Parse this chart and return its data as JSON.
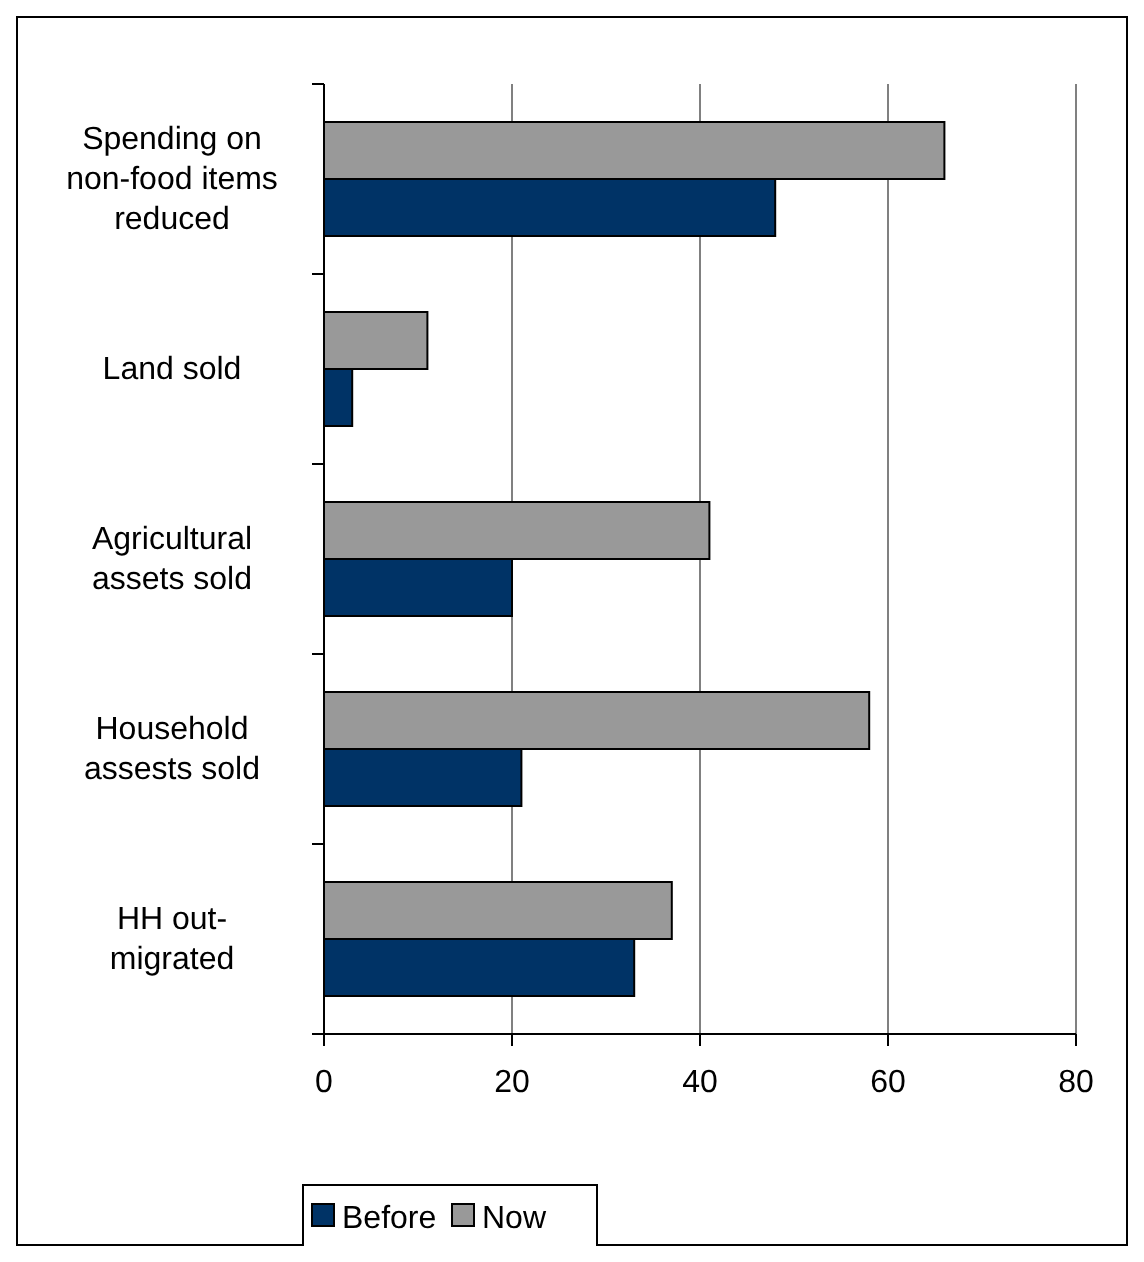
{
  "chart_data": {
    "type": "bar",
    "orientation": "horizontal",
    "categories": [
      "Spending on non-food items reduced",
      "Land sold",
      "Agricultural assets sold",
      "Household assests sold",
      "HH out-migrated"
    ],
    "series": [
      {
        "name": "Before",
        "color": "#003366",
        "values": [
          48,
          3,
          20,
          21,
          33
        ]
      },
      {
        "name": "Now",
        "color": "#999999",
        "values": [
          66,
          11,
          41,
          58,
          37
        ]
      }
    ],
    "xlim": [
      0,
      80
    ],
    "xticks": [
      0,
      20,
      40,
      60,
      80
    ],
    "grid": "x",
    "legend": "bottom"
  }
}
